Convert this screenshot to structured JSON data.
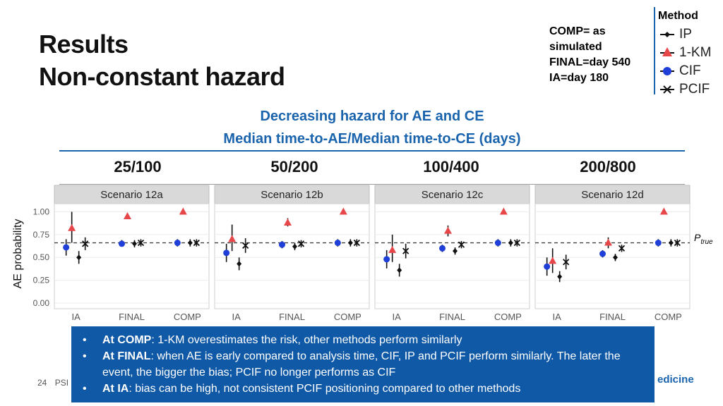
{
  "slide": {
    "title_line1": "Results",
    "title_line2": "Non-constant hazard",
    "note_lines": [
      "COMP= as",
      "simulated",
      "FINAL=day 540",
      "IA=day 180"
    ],
    "subtitle_line1": "Decreasing hazard for AE and CE",
    "subtitle_line2": "Median time-to-AE/Median time-to-CE (days)",
    "column_headers": [
      "25/100",
      "50/200",
      "100/400",
      "200/800"
    ],
    "ptrue_main": "P",
    "ptrue_sub": "true",
    "page_number": "24",
    "footer_text": "PSI",
    "logo_text": "edicine",
    "bullet_char": "•",
    "bullets": [
      {
        "bold": "At COMP",
        "text": ": 1-KM overestimates the risk, other methods perform similarly"
      },
      {
        "bold": "At FINAL",
        "text": ": when AE is early compared to analysis time, CIF, IP and PCIF perform similarly. The later the event, the bigger the bias; PCIF no longer performs as CIF"
      },
      {
        "bold": "At IA",
        "text": ": bias can be high, not consistent PCIF positioning compared to other methods"
      }
    ]
  },
  "legend": {
    "title": "Method",
    "items": [
      {
        "label": "IP",
        "icon": "diamond-icon",
        "color": "#111111"
      },
      {
        "label": "1-KM",
        "icon": "triangle-icon",
        "color": "#e8474a"
      },
      {
        "label": "CIF",
        "icon": "circle-icon",
        "color": "#1f3fd8"
      },
      {
        "label": "PCIF",
        "icon": "cross-icon",
        "color": "#111111"
      }
    ]
  },
  "chart_data": {
    "type": "scatter",
    "ylabel": "AE probability",
    "ylim": [
      0,
      1.05
    ],
    "yticks": [
      "0.00",
      "0.25",
      "0.50",
      "0.75",
      "1.00"
    ],
    "categories": [
      "IA",
      "FINAL",
      "COMP"
    ],
    "reference_line": 0.66,
    "methods": [
      "IP",
      "1-KM",
      "CIF",
      "PCIF"
    ],
    "colors": {
      "IP": "#111111",
      "1-KM": "#e8474a",
      "CIF": "#1f3fd8",
      "PCIF": "#111111",
      "strip": "#d9d9d9",
      "panel": "#ffffff",
      "grid": "#ebebeb"
    },
    "panels": [
      {
        "strip": "Scenario 12a",
        "points": {
          "IA": {
            "CIF": {
              "y": 0.61,
              "lo": 0.52,
              "hi": 0.7
            },
            "1-KM": {
              "y": 0.82,
              "lo": 0.66,
              "hi": 1.0
            },
            "IP": {
              "y": 0.5,
              "lo": 0.43,
              "hi": 0.57
            },
            "PCIF": {
              "y": 0.65,
              "lo": 0.58,
              "hi": 0.72
            }
          },
          "FINAL": {
            "CIF": {
              "y": 0.65,
              "lo": 0.62,
              "hi": 0.69
            },
            "1-KM": {
              "y": 0.95,
              "lo": 0.94,
              "hi": 0.96
            },
            "IP": {
              "y": 0.65,
              "lo": 0.61,
              "hi": 0.69
            },
            "PCIF": {
              "y": 0.66,
              "lo": 0.62,
              "hi": 0.7
            }
          },
          "COMP": {
            "CIF": {
              "y": 0.66,
              "lo": 0.62,
              "hi": 0.7
            },
            "1-KM": {
              "y": 1.0,
              "lo": 0.99,
              "hi": 1.0
            },
            "IP": {
              "y": 0.66,
              "lo": 0.62,
              "hi": 0.7
            },
            "PCIF": {
              "y": 0.66,
              "lo": 0.62,
              "hi": 0.7
            }
          }
        }
      },
      {
        "strip": "Scenario 12b",
        "points": {
          "IA": {
            "CIF": {
              "y": 0.55,
              "lo": 0.45,
              "hi": 0.65
            },
            "1-KM": {
              "y": 0.7,
              "lo": 0.57,
              "hi": 0.86
            },
            "IP": {
              "y": 0.43,
              "lo": 0.36,
              "hi": 0.5
            },
            "PCIF": {
              "y": 0.63,
              "lo": 0.55,
              "hi": 0.71
            }
          },
          "FINAL": {
            "CIF": {
              "y": 0.64,
              "lo": 0.6,
              "hi": 0.68
            },
            "1-KM": {
              "y": 0.88,
              "lo": 0.84,
              "hi": 0.93
            },
            "IP": {
              "y": 0.62,
              "lo": 0.58,
              "hi": 0.66
            },
            "PCIF": {
              "y": 0.65,
              "lo": 0.61,
              "hi": 0.69
            }
          },
          "COMP": {
            "CIF": {
              "y": 0.66,
              "lo": 0.62,
              "hi": 0.7
            },
            "1-KM": {
              "y": 1.0,
              "lo": 0.99,
              "hi": 1.0
            },
            "IP": {
              "y": 0.66,
              "lo": 0.62,
              "hi": 0.7
            },
            "PCIF": {
              "y": 0.66,
              "lo": 0.62,
              "hi": 0.7
            }
          }
        }
      },
      {
        "strip": "Scenario 12c",
        "points": {
          "IA": {
            "CIF": {
              "y": 0.48,
              "lo": 0.38,
              "hi": 0.58
            },
            "1-KM": {
              "y": 0.58,
              "lo": 0.45,
              "hi": 0.75
            },
            "IP": {
              "y": 0.36,
              "lo": 0.29,
              "hi": 0.43
            },
            "PCIF": {
              "y": 0.57,
              "lo": 0.49,
              "hi": 0.65
            }
          },
          "FINAL": {
            "CIF": {
              "y": 0.6,
              "lo": 0.56,
              "hi": 0.64
            },
            "1-KM": {
              "y": 0.79,
              "lo": 0.73,
              "hi": 0.85
            },
            "IP": {
              "y": 0.57,
              "lo": 0.53,
              "hi": 0.61
            },
            "PCIF": {
              "y": 0.64,
              "lo": 0.6,
              "hi": 0.68
            }
          },
          "COMP": {
            "CIF": {
              "y": 0.66,
              "lo": 0.62,
              "hi": 0.7
            },
            "1-KM": {
              "y": 1.0,
              "lo": 0.99,
              "hi": 1.0
            },
            "IP": {
              "y": 0.66,
              "lo": 0.62,
              "hi": 0.7
            },
            "PCIF": {
              "y": 0.66,
              "lo": 0.62,
              "hi": 0.7
            }
          }
        }
      },
      {
        "strip": "Scenario 12d",
        "points": {
          "IA": {
            "CIF": {
              "y": 0.4,
              "lo": 0.3,
              "hi": 0.5
            },
            "1-KM": {
              "y": 0.46,
              "lo": 0.33,
              "hi": 0.6
            },
            "IP": {
              "y": 0.29,
              "lo": 0.23,
              "hi": 0.35
            },
            "PCIF": {
              "y": 0.45,
              "lo": 0.37,
              "hi": 0.53
            }
          },
          "FINAL": {
            "CIF": {
              "y": 0.54,
              "lo": 0.5,
              "hi": 0.58
            },
            "1-KM": {
              "y": 0.66,
              "lo": 0.6,
              "hi": 0.72
            },
            "IP": {
              "y": 0.5,
              "lo": 0.46,
              "hi": 0.54
            },
            "PCIF": {
              "y": 0.6,
              "lo": 0.56,
              "hi": 0.64
            }
          },
          "COMP": {
            "CIF": {
              "y": 0.66,
              "lo": 0.62,
              "hi": 0.7
            },
            "1-KM": {
              "y": 1.0,
              "lo": 0.99,
              "hi": 1.0
            },
            "IP": {
              "y": 0.66,
              "lo": 0.62,
              "hi": 0.7
            },
            "PCIF": {
              "y": 0.66,
              "lo": 0.62,
              "hi": 0.7
            }
          }
        }
      }
    ]
  }
}
